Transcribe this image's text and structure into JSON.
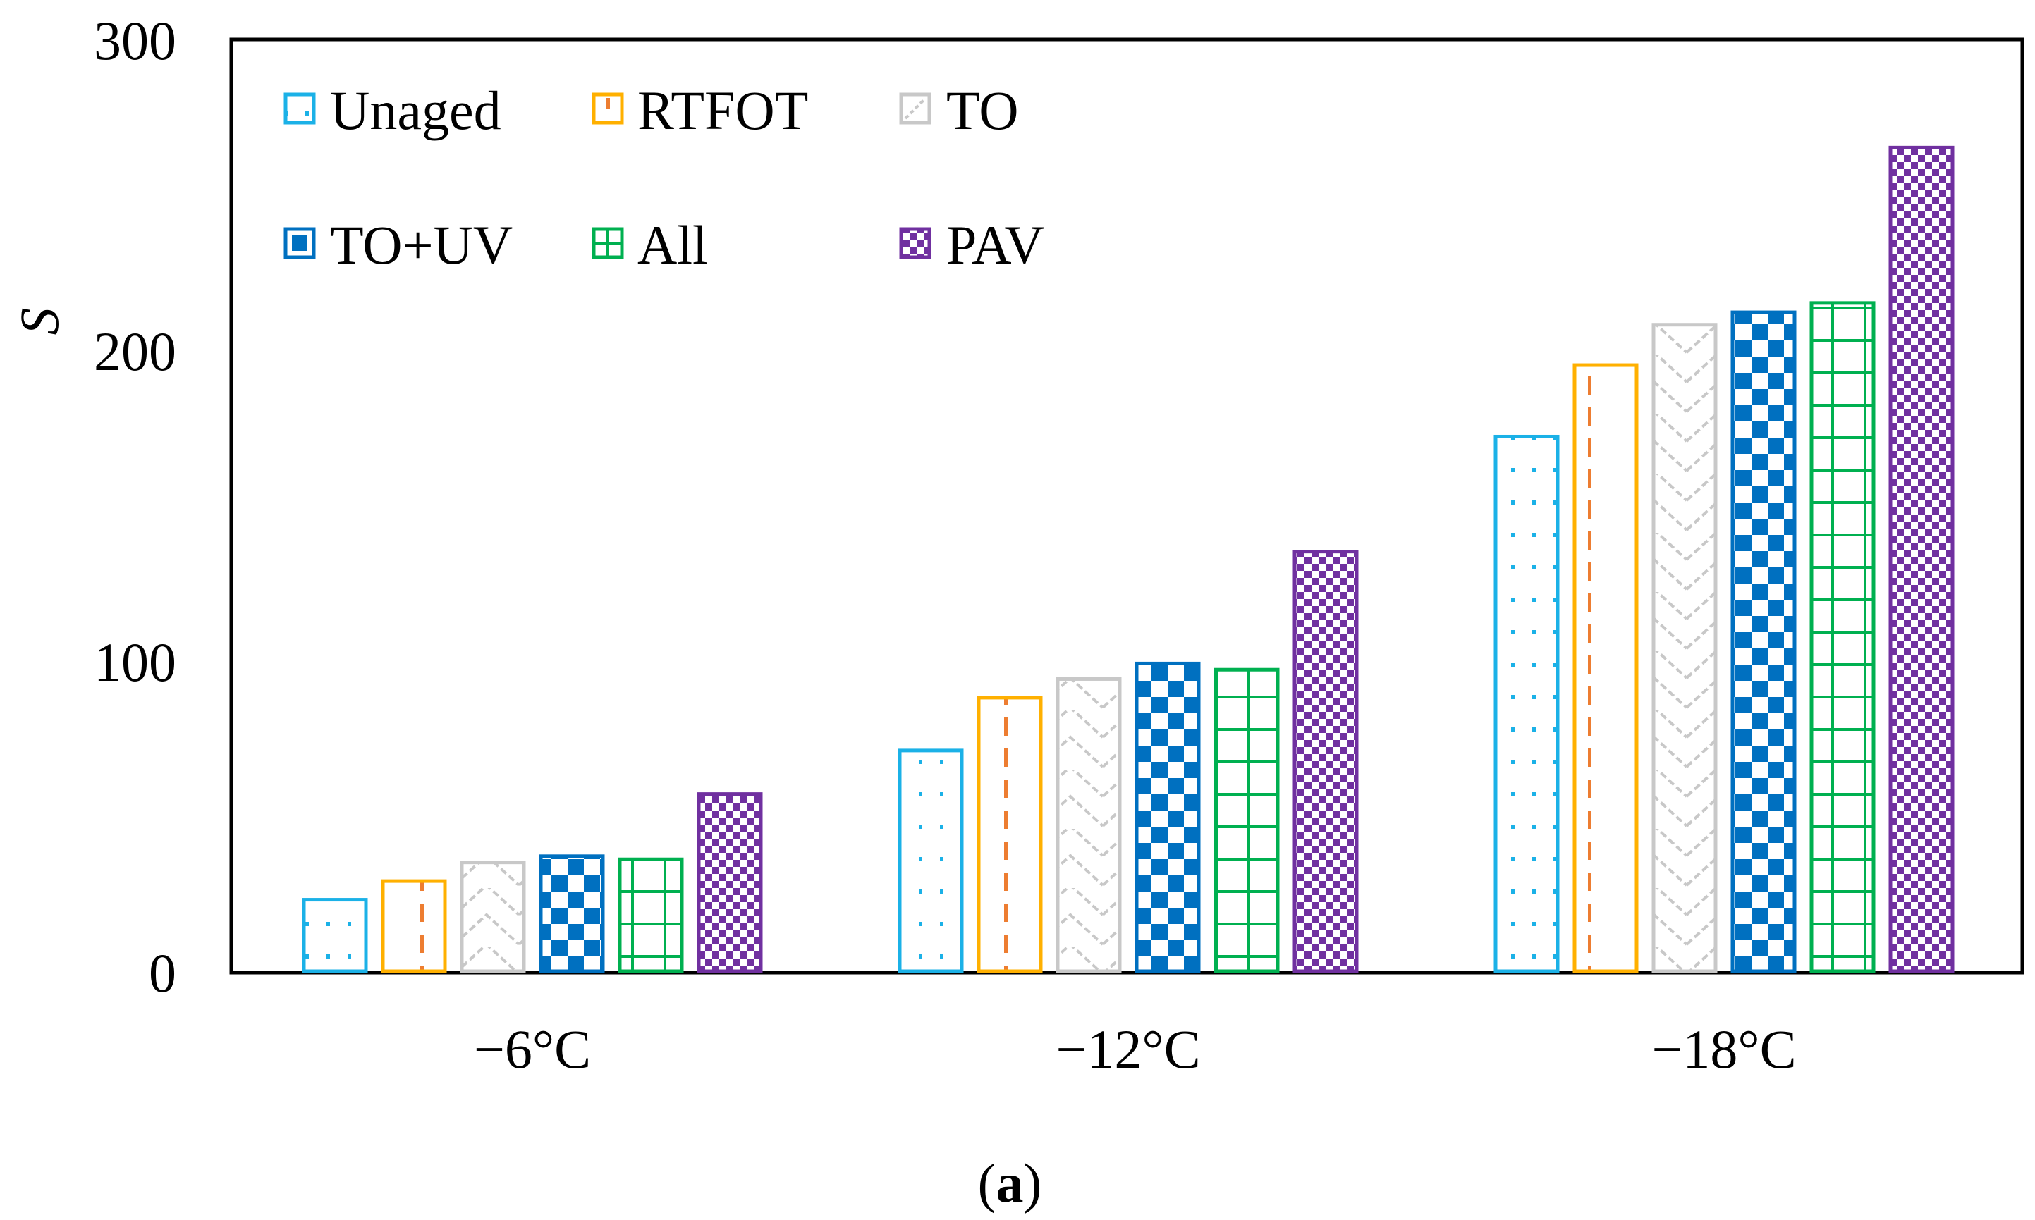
{
  "chart_data": {
    "type": "bar",
    "title": "",
    "xlabel": "",
    "ylabel": "S",
    "ylim": [
      0,
      300
    ],
    "yticks": [
      "0",
      "100",
      "200",
      "300"
    ],
    "categories": [
      "−6°C",
      "−12°C",
      "−18°C"
    ],
    "grid": false,
    "legend_position": "top-left",
    "series": [
      {
        "name": "Unaged",
        "values": [
          23,
          71,
          172
        ],
        "color": "#1BB1E7",
        "pattern": "dots"
      },
      {
        "name": "RTFOT",
        "values": [
          29,
          88,
          195
        ],
        "color": "#FFB000",
        "accent": "#ED7D31",
        "pattern": "dashes"
      },
      {
        "name": "TO",
        "values": [
          35,
          94,
          208
        ],
        "color": "#C8C8C8",
        "pattern": "zigzag"
      },
      {
        "name": "TO+UV",
        "values": [
          37,
          99,
          212
        ],
        "color": "#0070C0",
        "pattern": "checker"
      },
      {
        "name": "All",
        "values": [
          36,
          97,
          215
        ],
        "color": "#00B050",
        "pattern": "grid"
      },
      {
        "name": "PAV",
        "values": [
          57,
          135,
          265
        ],
        "color": "#7030A0",
        "pattern": "smallchecker"
      }
    ],
    "caption": "(a)"
  }
}
